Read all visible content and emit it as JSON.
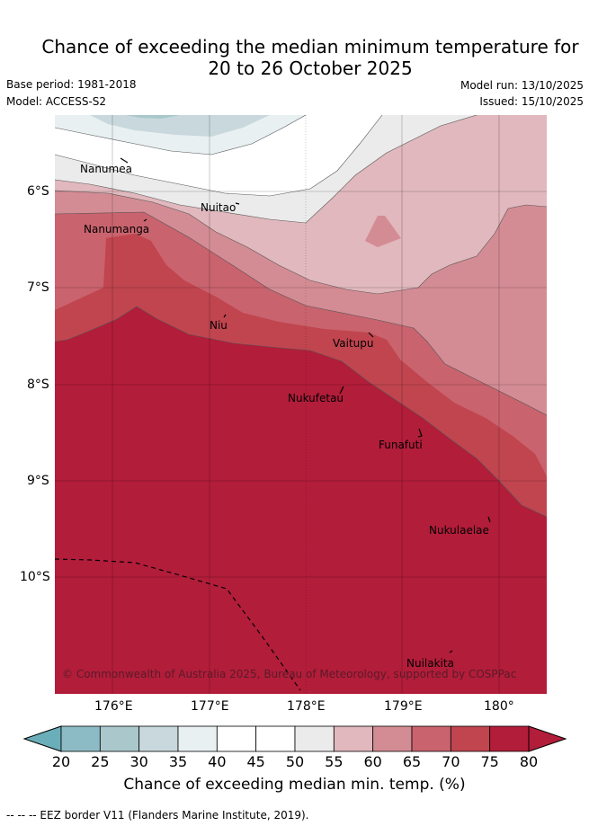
{
  "header": {
    "title_line1": "Chance of exceeding the median minimum temperature for",
    "title_line2": "20 to 26 October 2025",
    "base_period": "Base period: 1981-2018",
    "model": "Model: ACCESS-S2",
    "model_run": "Model run: 13/10/2025",
    "issued": "Issued: 15/10/2025"
  },
  "map": {
    "x_ticks": [
      "176°E",
      "177°E",
      "178°E",
      "179°E",
      "180°"
    ],
    "y_ticks": [
      "6°S",
      "7°S",
      "8°S",
      "9°S",
      "10°S"
    ],
    "places": [
      "Nanumea",
      "Nuitao",
      "Nanumanga",
      "Niu",
      "Vaitupu",
      "Nukufetau",
      "Funafuti",
      "Nukulaelae",
      "Nuilakita"
    ],
    "copyright": "© Commonwealth of Australia 2025, Bureau of Meteorology, supported by COSPPac"
  },
  "colorbar": {
    "ticks": [
      "20",
      "25",
      "30",
      "35",
      "40",
      "45",
      "50",
      "55",
      "60",
      "65",
      "70",
      "75",
      "80"
    ],
    "colors": [
      "#6aaeba",
      "#8dbbc5",
      "#aac8cc",
      "#c8d8dc",
      "#e8f0f2",
      "#ffffff",
      "#ffffff",
      "#ecebec",
      "#e0b8bd",
      "#d48c94",
      "#c9636e",
      "#c0454f",
      "#b21d3a"
    ],
    "label": "Chance of exceeding median min. temp. (%)"
  },
  "footer": {
    "eez_note": "--  --  -- EEZ border V11 (Flanders Marine Institute, 2019)."
  }
}
